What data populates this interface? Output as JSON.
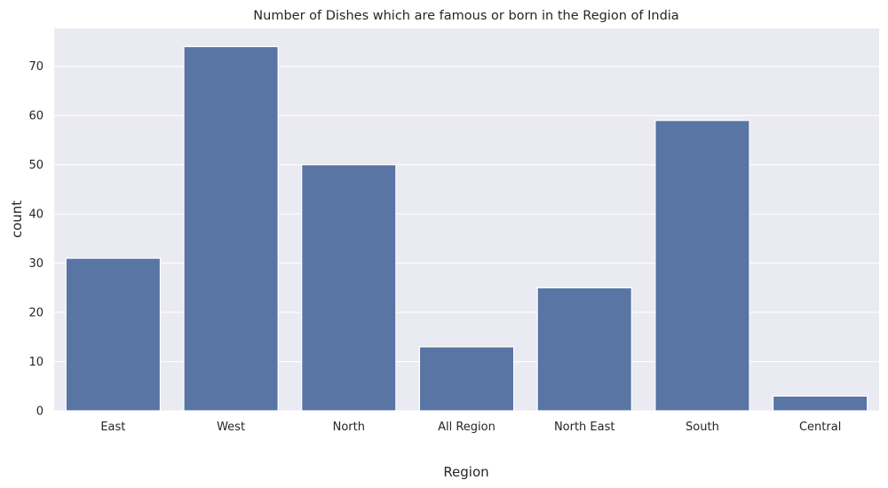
{
  "chart_data": {
    "type": "bar",
    "title": "Number of Dishes which are famous or born in the Region of India",
    "xlabel": "Region",
    "ylabel": "count",
    "categories": [
      "East",
      "West",
      "North",
      "All Region",
      "North East",
      "South",
      "Central"
    ],
    "values": [
      31,
      74,
      50,
      13,
      25,
      59,
      3
    ],
    "ylim": [
      0,
      77.7
    ],
    "yticks": [
      0,
      10,
      20,
      30,
      40,
      50,
      60,
      70
    ],
    "grid": true,
    "colors": {
      "bar": "#5875a4",
      "background": "#eaeaf2",
      "grid": "#ffffff"
    }
  }
}
